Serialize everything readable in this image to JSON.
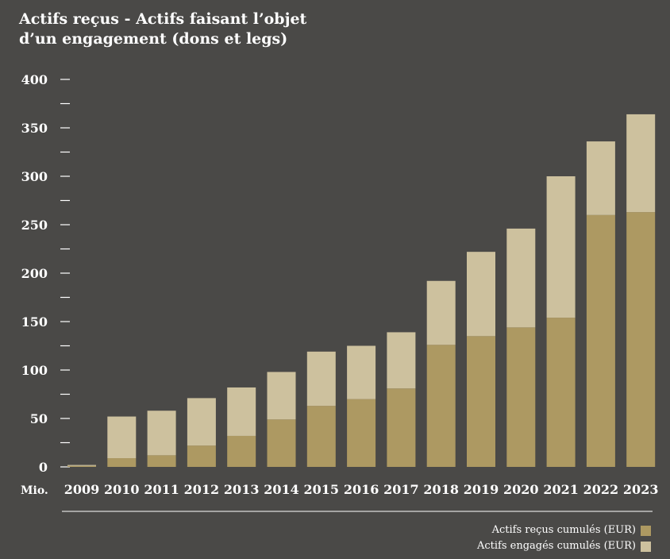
{
  "chart_data": {
    "type": "bar",
    "stacked": true,
    "title_line1": "Actifs reçus - Actifs faisant l’objet",
    "title_line2": "d’un engagement (dons et legs)",
    "unit_label": "Mio.",
    "categories": [
      "2009",
      "2010",
      "2011",
      "2012",
      "2013",
      "2014",
      "2015",
      "2016",
      "2017",
      "2018",
      "2019",
      "2020",
      "2021",
      "2022",
      "2023"
    ],
    "ylim": [
      0,
      400
    ],
    "yticks": [
      0,
      50,
      100,
      150,
      200,
      250,
      300,
      350,
      400
    ],
    "series": [
      {
        "name": "Actifs reçus cumulés (EUR)",
        "color": "#ad9962",
        "values": [
          1,
          9,
          12,
          22,
          32,
          49,
          63,
          70,
          81,
          126,
          135,
          144,
          154,
          260,
          263
        ]
      },
      {
        "name": "Actifs engagés cumulés (EUR)",
        "color": "#cdc19e",
        "values": [
          1,
          43,
          46,
          49,
          50,
          49,
          56,
          55,
          58,
          66,
          87,
          102,
          146,
          76,
          101
        ]
      }
    ],
    "legend_position": "bottom-right",
    "grid": false
  }
}
